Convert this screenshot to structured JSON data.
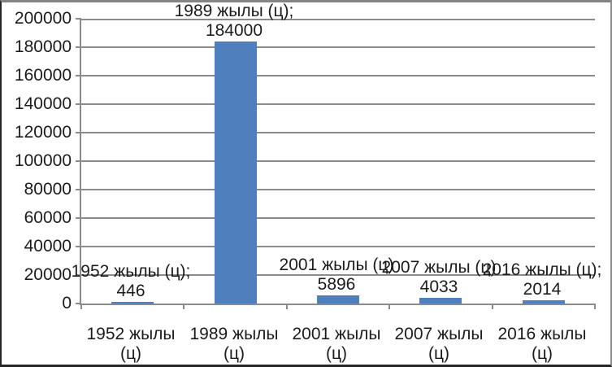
{
  "chart_data": {
    "type": "bar",
    "title": "",
    "xlabel": "",
    "ylabel": "",
    "categories": [
      "1952 жылы\n(ц)",
      "1989 жылы\n(ц)",
      "2001 жылы\n(ц)",
      "2007 жылы\n(ц)",
      "2016 жылы\n(ц)"
    ],
    "values": [
      446,
      184000,
      5896,
      4033,
      2014
    ],
    "data_labels": [
      {
        "name": "1952 жылы (ц);",
        "value": "446"
      },
      {
        "name": "1989 жылы (ц);",
        "value": "184000"
      },
      {
        "name": "2001 жылы (ц)",
        "value": "5896"
      },
      {
        "name": "2007 жылы (ц)",
        "value": "4033"
      },
      {
        "name": "2016 жылы (ц);",
        "value": "2014"
      }
    ],
    "ylim": [
      0,
      200000
    ],
    "ytick_step": 20000,
    "ytick_labels": [
      "0",
      "20000",
      "40000",
      "60000",
      "80000",
      "100000",
      "120000",
      "140000",
      "160000",
      "180000",
      "200000"
    ],
    "grid": true,
    "legend": "none",
    "bar_color": "#4f80bd",
    "gridline_color": "#8b8b8b",
    "axis_color": "#8b8b8b",
    "text_color": "#1c1c1c",
    "background": "#ffffff"
  }
}
